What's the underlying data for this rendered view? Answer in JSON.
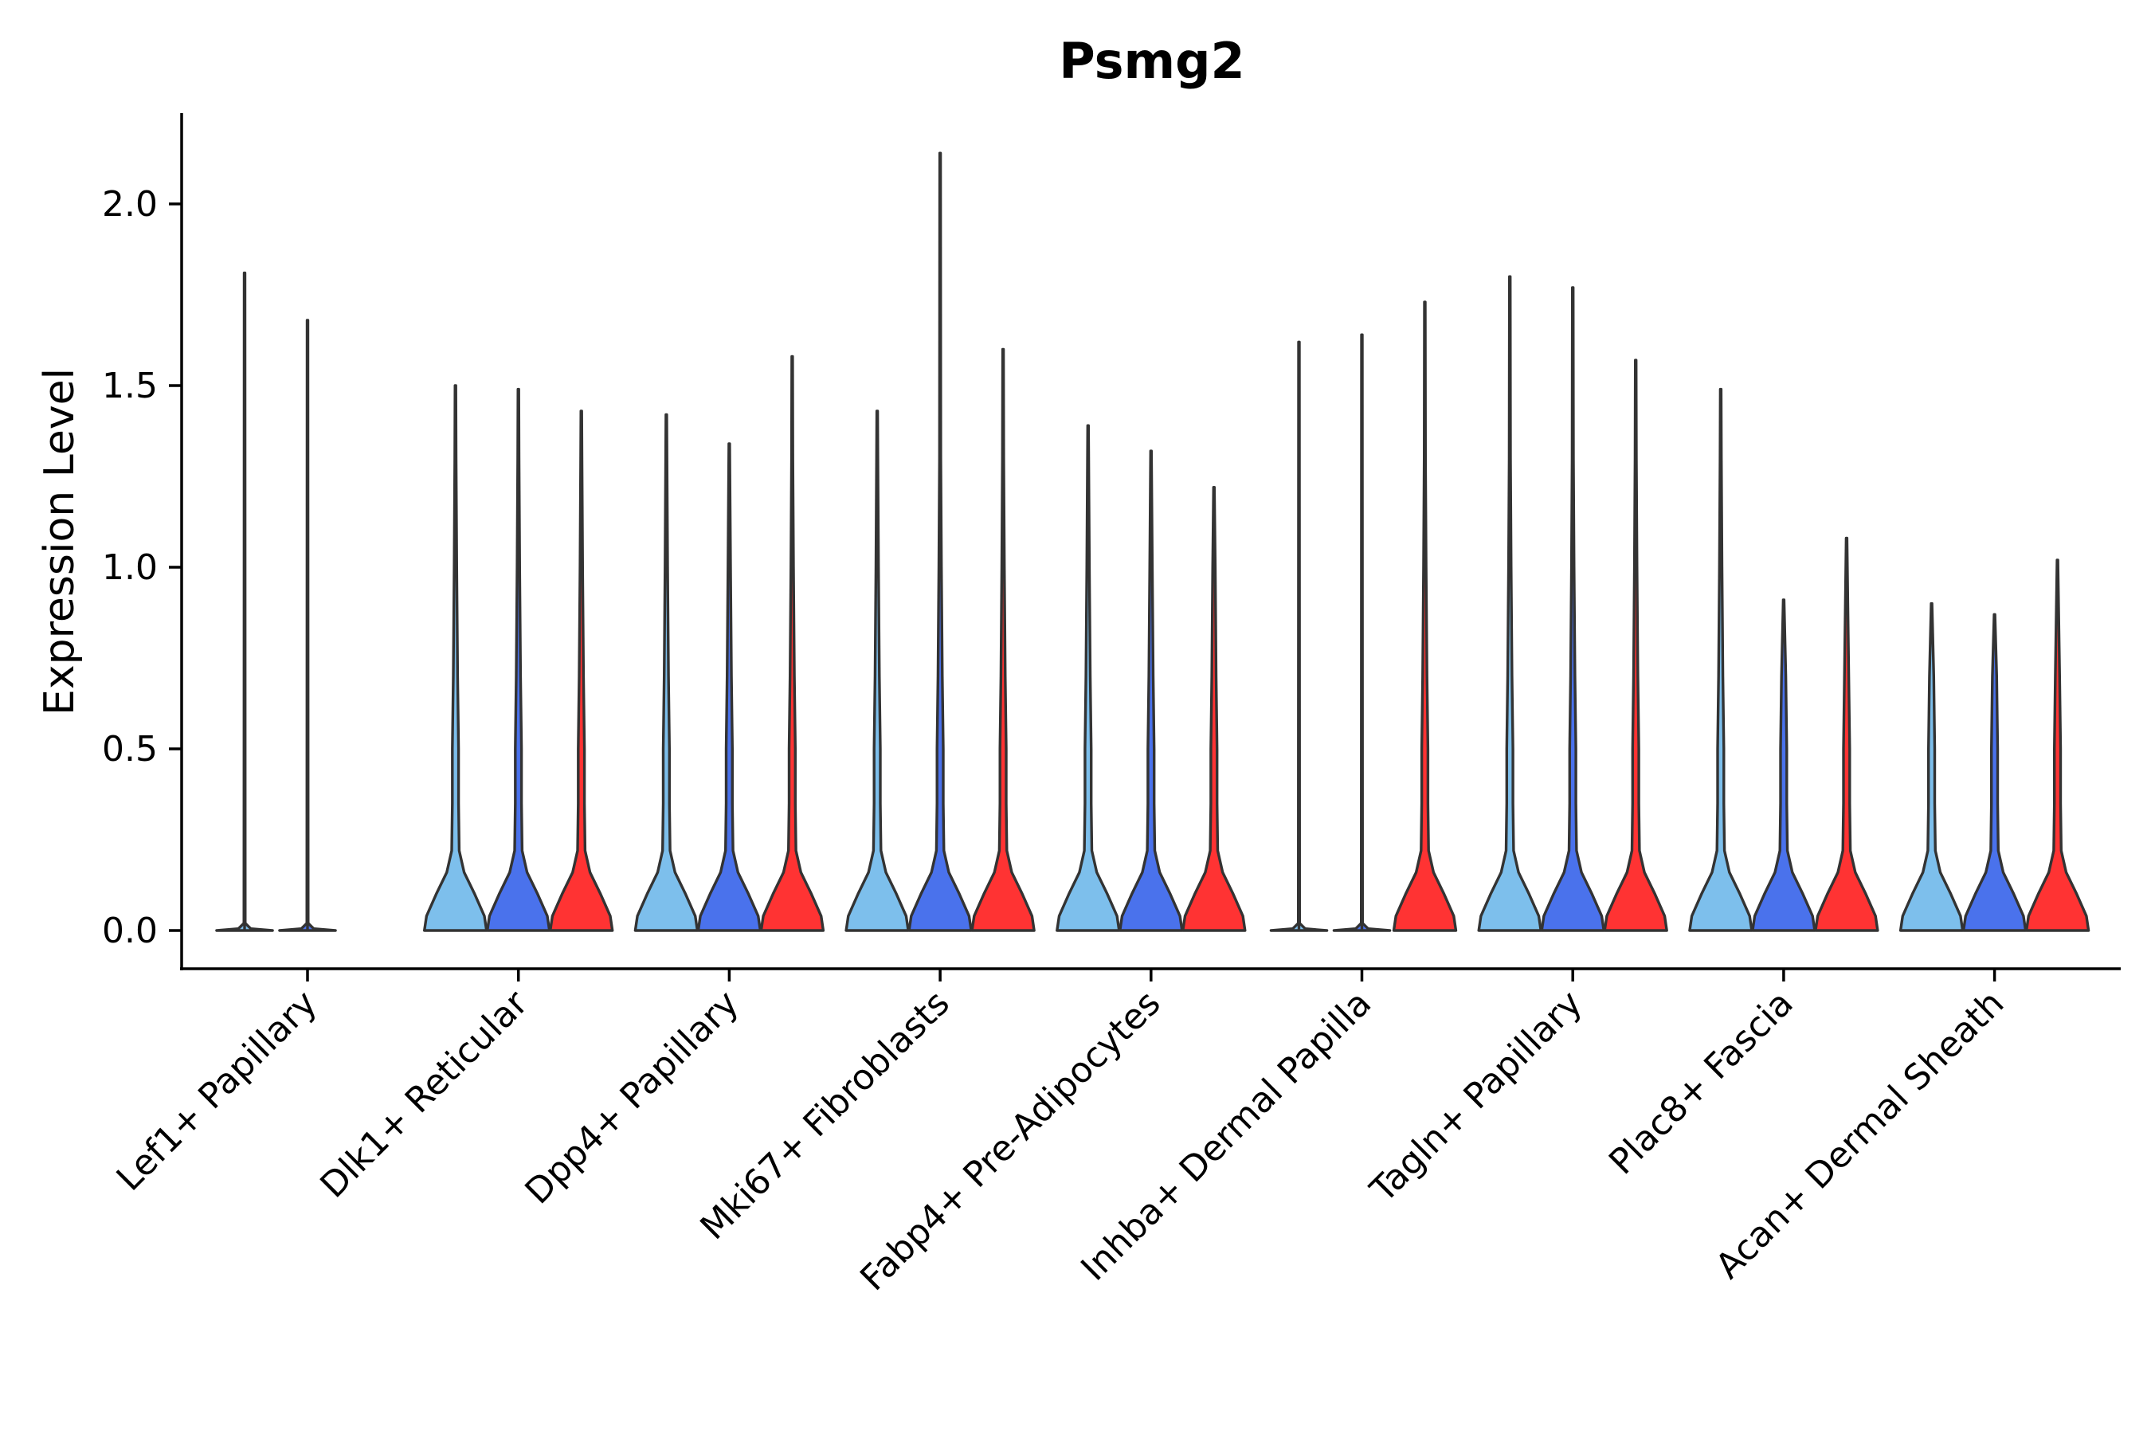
{
  "chart_data": {
    "type": "violin",
    "title": "Psmg2",
    "xlabel": "",
    "ylabel": "Expression Level",
    "ylim": [
      -0.11,
      2.25
    ],
    "yticks": [
      0.0,
      0.5,
      1.0,
      1.5,
      2.0
    ],
    "ytick_labels": [
      "0.0",
      "0.5",
      "1.0",
      "1.5",
      "2.0"
    ],
    "grid": false,
    "legend": "none",
    "group_colors": [
      "#7dbfec",
      "#4a72ec",
      "#ff3333"
    ],
    "categories": [
      "Lef1+ Papillary",
      "Dlk1+ Reticular",
      "Dpp4+ Papillary",
      "Mki67+ Fibroblasts",
      "Fabp4+ Pre-Adipocytes",
      "Inhba+ Dermal Papilla",
      "Tagln+ Papillary",
      "Plac8+ Fascia",
      "Acan+ Dermal Sheath"
    ],
    "violins": [
      {
        "category": 0,
        "group": 0,
        "max": 1.81
      },
      {
        "category": 0,
        "group": 1,
        "max": 1.68
      },
      {
        "category": 1,
        "group": 0,
        "max": 1.5
      },
      {
        "category": 1,
        "group": 1,
        "max": 1.49
      },
      {
        "category": 1,
        "group": 2,
        "max": 1.43
      },
      {
        "category": 2,
        "group": 0,
        "max": 1.42
      },
      {
        "category": 2,
        "group": 1,
        "max": 1.34
      },
      {
        "category": 2,
        "group": 2,
        "max": 1.58
      },
      {
        "category": 3,
        "group": 0,
        "max": 1.43
      },
      {
        "category": 3,
        "group": 1,
        "max": 2.14
      },
      {
        "category": 3,
        "group": 2,
        "max": 1.6
      },
      {
        "category": 4,
        "group": 0,
        "max": 1.39
      },
      {
        "category": 4,
        "group": 1,
        "max": 1.32
      },
      {
        "category": 4,
        "group": 2,
        "max": 1.22
      },
      {
        "category": 5,
        "group": 0,
        "max": 1.62
      },
      {
        "category": 5,
        "group": 1,
        "max": 1.64
      },
      {
        "category": 5,
        "group": 2,
        "max": 1.73
      },
      {
        "category": 6,
        "group": 0,
        "max": 1.8
      },
      {
        "category": 6,
        "group": 1,
        "max": 1.77
      },
      {
        "category": 6,
        "group": 2,
        "max": 1.57
      },
      {
        "category": 7,
        "group": 0,
        "max": 1.49
      },
      {
        "category": 7,
        "group": 1,
        "max": 0.91
      },
      {
        "category": 7,
        "group": 2,
        "max": 1.08
      },
      {
        "category": 8,
        "group": 0,
        "max": 0.9
      },
      {
        "category": 8,
        "group": 1,
        "max": 0.87
      },
      {
        "category": 8,
        "group": 2,
        "max": 1.02
      }
    ]
  }
}
